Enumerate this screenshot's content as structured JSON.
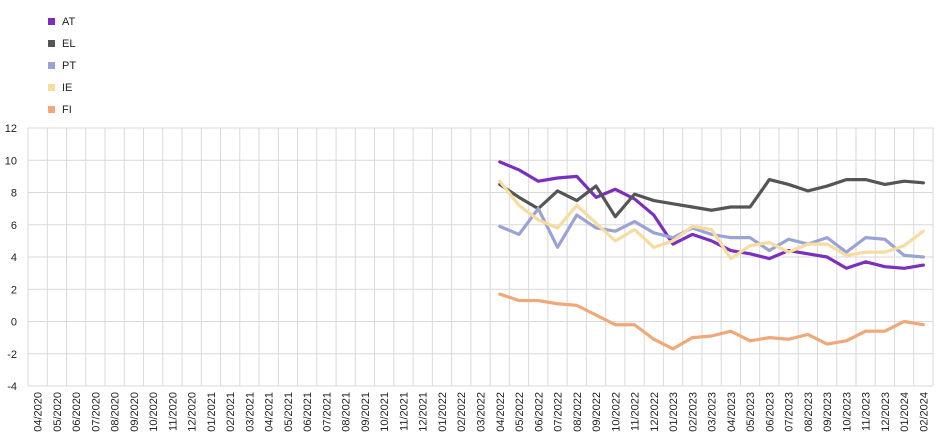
{
  "chart_data": {
    "type": "line",
    "title": "",
    "xlabel": "",
    "ylabel": "",
    "ylim": [
      -4,
      12
    ],
    "yticks": [
      -4,
      -2,
      0,
      2,
      4,
      6,
      8,
      10,
      12
    ],
    "grid": true,
    "legend_position": "top-left",
    "categories": [
      "04/2020",
      "05/2020",
      "06/2020",
      "07/2020",
      "08/2020",
      "09/2020",
      "10/2020",
      "11/2020",
      "12/2020",
      "01/2021",
      "02/2021",
      "03/2021",
      "04/2021",
      "05/2021",
      "06/2021",
      "07/2021",
      "08/2021",
      "09/2021",
      "10/2021",
      "11/2021",
      "12/2021",
      "01/2022",
      "02/2022",
      "03/2022",
      "04/2022",
      "05/2022",
      "06/2022",
      "07/2022",
      "08/2022",
      "09/2022",
      "10/2022",
      "11/2022",
      "12/2022",
      "01/2023",
      "02/2023",
      "03/2023",
      "04/2023",
      "05/2023",
      "06/2023",
      "07/2023",
      "08/2023",
      "09/2023",
      "10/2023",
      "11/2023",
      "12/2023",
      "01/2024",
      "02/2024"
    ],
    "series": [
      {
        "name": "AT",
        "color": "#7b2fbe",
        "values": [
          null,
          null,
          null,
          null,
          null,
          null,
          null,
          null,
          null,
          null,
          null,
          null,
          null,
          null,
          null,
          null,
          null,
          null,
          null,
          null,
          null,
          null,
          null,
          null,
          9.9,
          9.4,
          8.7,
          8.9,
          9.0,
          7.7,
          8.2,
          7.6,
          6.6,
          4.8,
          5.4,
          5.0,
          4.4,
          4.2,
          3.9,
          4.4,
          4.2,
          4.0,
          3.3,
          3.7,
          3.4,
          3.3,
          3.5
        ]
      },
      {
        "name": "EL",
        "color": "#555555",
        "values": [
          null,
          null,
          null,
          null,
          null,
          null,
          null,
          null,
          null,
          null,
          null,
          null,
          null,
          null,
          null,
          null,
          null,
          null,
          null,
          null,
          null,
          null,
          null,
          null,
          8.5,
          7.7,
          7.0,
          8.1,
          7.5,
          8.4,
          6.5,
          7.9,
          7.5,
          7.3,
          7.1,
          6.9,
          7.1,
          7.1,
          8.8,
          8.5,
          8.1,
          8.4,
          8.8,
          8.8,
          8.5,
          8.7,
          8.6
        ]
      },
      {
        "name": "PT",
        "color": "#9aa3d6",
        "values": [
          null,
          null,
          null,
          null,
          null,
          null,
          null,
          null,
          null,
          null,
          null,
          null,
          null,
          null,
          null,
          null,
          null,
          null,
          null,
          null,
          null,
          null,
          null,
          null,
          5.9,
          5.4,
          7.0,
          4.6,
          6.6,
          5.8,
          5.6,
          6.2,
          5.5,
          5.2,
          5.8,
          5.4,
          5.2,
          5.2,
          4.4,
          5.1,
          4.8,
          5.2,
          4.3,
          5.2,
          5.1,
          4.1,
          4.0
        ]
      },
      {
        "name": "IE",
        "color": "#f7dca0",
        "values": [
          null,
          null,
          null,
          null,
          null,
          null,
          null,
          null,
          null,
          null,
          null,
          null,
          null,
          null,
          null,
          null,
          null,
          null,
          null,
          null,
          null,
          null,
          null,
          null,
          8.7,
          7.2,
          6.3,
          5.8,
          7.2,
          6.1,
          5.0,
          5.7,
          4.6,
          5.0,
          5.9,
          5.7,
          3.9,
          4.7,
          4.9,
          4.3,
          4.8,
          4.8,
          4.1,
          4.3,
          4.3,
          4.7,
          5.6
        ]
      },
      {
        "name": "FI",
        "color": "#f0a878",
        "values": [
          null,
          null,
          null,
          null,
          null,
          null,
          null,
          null,
          null,
          null,
          null,
          null,
          null,
          null,
          null,
          null,
          null,
          null,
          null,
          null,
          null,
          null,
          null,
          null,
          1.7,
          1.3,
          1.3,
          1.1,
          1.0,
          0.4,
          -0.2,
          -0.2,
          -1.1,
          -1.7,
          -1.0,
          -0.9,
          -0.6,
          -1.2,
          -1.0,
          -1.1,
          -0.8,
          -1.4,
          -1.2,
          -0.6,
          -0.6,
          0.0,
          -0.2
        ]
      }
    ]
  }
}
